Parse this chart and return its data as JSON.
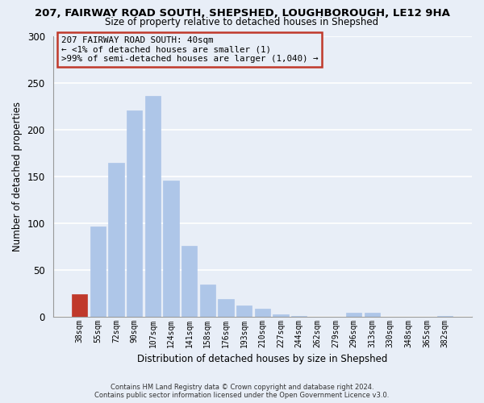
{
  "title_line1": "207, FAIRWAY ROAD SOUTH, SHEPSHED, LOUGHBOROUGH, LE12 9HA",
  "title_line2": "Size of property relative to detached houses in Shepshed",
  "xlabel": "Distribution of detached houses by size in Shepshed",
  "ylabel": "Number of detached properties",
  "bar_labels": [
    "38sqm",
    "55sqm",
    "72sqm",
    "90sqm",
    "107sqm",
    "124sqm",
    "141sqm",
    "158sqm",
    "176sqm",
    "193sqm",
    "210sqm",
    "227sqm",
    "244sqm",
    "262sqm",
    "279sqm",
    "296sqm",
    "313sqm",
    "330sqm",
    "348sqm",
    "365sqm",
    "382sqm"
  ],
  "bar_values": [
    24,
    97,
    165,
    221,
    236,
    146,
    76,
    35,
    19,
    12,
    9,
    3,
    1,
    0,
    0,
    4,
    4,
    0,
    0,
    0,
    1
  ],
  "bar_color": "#aec6e8",
  "highlight_color": "#c0392b",
  "highlight_index": 0,
  "ylim": [
    0,
    300
  ],
  "yticks": [
    0,
    50,
    100,
    150,
    200,
    250,
    300
  ],
  "annotation_title": "207 FAIRWAY ROAD SOUTH: 40sqm",
  "annotation_line1": "← <1% of detached houses are smaller (1)",
  "annotation_line2": ">99% of semi-detached houses are larger (1,040) →",
  "footer_line1": "Contains HM Land Registry data © Crown copyright and database right 2024.",
  "footer_line2": "Contains public sector information licensed under the Open Government Licence v3.0.",
  "background_color": "#e8eef7",
  "grid_color": "#ffffff"
}
